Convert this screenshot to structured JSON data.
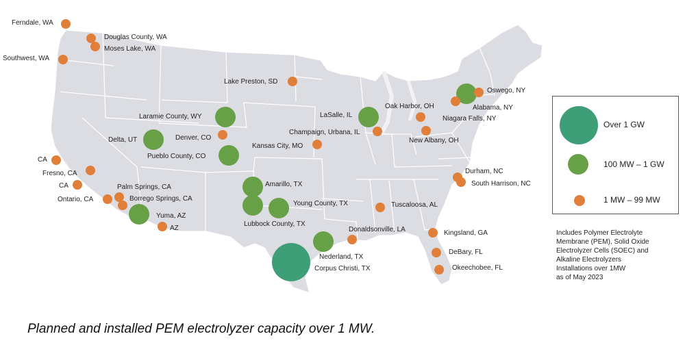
{
  "colors": {
    "land": "#dcdde2",
    "borders": "#ffffff",
    "over_1gw": "#3d9e78",
    "mw100_1gw": "#67a046",
    "mw1_99": "#e07f3a"
  },
  "legend": {
    "items": [
      {
        "label": "Over 1 GW",
        "category": "large"
      },
      {
        "label": "100 MW – 1 GW",
        "category": "medium"
      },
      {
        "label": "1 MW – 99 MW",
        "category": "small"
      }
    ]
  },
  "footnote": {
    "lines": [
      "Includes Polymer Electrolyte",
      "Membrane (PEM), Solid Oxide",
      "Electrolyzer Cells (SOEC) and",
      "Alkaline Electrolyzers",
      "Installations over 1MW",
      "as of May 2023"
    ]
  },
  "caption": "Planned and installed PEM electrolyzer capacity over 1 MW.",
  "sites": [
    {
      "label": "Ferndale, WA",
      "category": "small"
    },
    {
      "label": "Douglas County, WA",
      "category": "small"
    },
    {
      "label": "Moses Lake, WA",
      "category": "small"
    },
    {
      "label": "Southwest, WA",
      "category": "small"
    },
    {
      "label": "Lake Preston, SD",
      "category": "small"
    },
    {
      "label": "Oswego, NY",
      "category": "small"
    },
    {
      "label": "Alabama, NY",
      "category": "medium"
    },
    {
      "label": "Oak Harbor, OH",
      "category": "small"
    },
    {
      "label": "LaSalle, IL",
      "category": "medium"
    },
    {
      "label": "Laramie County, WY",
      "category": "medium"
    },
    {
      "label": "Niagara Falls, NY",
      "category": "small"
    },
    {
      "label": "Champaign, Urbana, IL",
      "category": "small"
    },
    {
      "label": "Denver, CO",
      "category": "small"
    },
    {
      "label": "Delta, UT",
      "category": "medium"
    },
    {
      "label": "New Albany, OH",
      "category": "small"
    },
    {
      "label": "Kansas City, MO",
      "category": "small"
    },
    {
      "label": "Pueblo County, CO",
      "category": "medium"
    },
    {
      "label": "CA",
      "category": "small"
    },
    {
      "label": "Fresno, CA",
      "category": "small"
    },
    {
      "label": "CA",
      "category": "small"
    },
    {
      "label": "Durham, NC",
      "category": "small"
    },
    {
      "label": "South Harrison, NC",
      "category": "small"
    },
    {
      "label": "Palm Springs, CA",
      "category": "small"
    },
    {
      "label": "Amarillo, TX",
      "category": "medium"
    },
    {
      "label": "Ontario, CA",
      "category": "small"
    },
    {
      "label": "Borrego Springs, CA",
      "category": "small"
    },
    {
      "label": "Young County, TX",
      "category": "medium"
    },
    {
      "label": "Tuscaloosa, AL",
      "category": "small"
    },
    {
      "label": "Yuma, AZ",
      "category": "medium"
    },
    {
      "label": "AZ",
      "category": "small"
    },
    {
      "label": "Lubbock County, TX",
      "category": "medium"
    },
    {
      "label": "Donaldsonville, LA",
      "category": "small"
    },
    {
      "label": "Kingsland, GA",
      "category": "small"
    },
    {
      "label": "Nederland, TX",
      "category": "medium"
    },
    {
      "label": "DeBary, FL",
      "category": "small"
    },
    {
      "label": "Corpus Christi, TX",
      "category": "large"
    },
    {
      "label": "Okeechobee, FL",
      "category": "small"
    }
  ]
}
